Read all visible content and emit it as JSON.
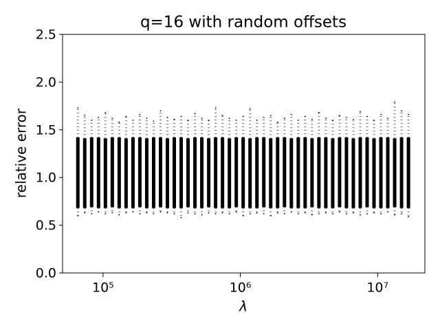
{
  "chart_data": {
    "type": "strip",
    "title": "q=16 with random offsets",
    "xlabel": "λ",
    "ylabel": "relative error",
    "xscale": "log",
    "xlim": [
      50700,
      22100000
    ],
    "ylim": [
      0,
      2.5
    ],
    "xticks": [
      {
        "value": 100000,
        "label": "10⁵"
      },
      {
        "value": 1000000,
        "label": "10⁶"
      },
      {
        "value": 10000000,
        "label": "10⁷"
      }
    ],
    "yticks": [
      {
        "value": 0,
        "label": "0.0"
      },
      0.5,
      {
        "value": 1,
        "label": "1.0"
      },
      1.5,
      {
        "value": 2,
        "label": "2.0"
      },
      2.5
    ],
    "color": "#000000",
    "x": [
      65536,
      73562,
      82570,
      92682,
      104032,
      116772,
      131072,
      147123,
      165140,
      185364,
      208064,
      233544,
      262144,
      294247,
      330281,
      370728,
      416128,
      467088,
      524288,
      588494,
      660561,
      741455,
      832255,
      934176,
      1048576,
      1176989,
      1321122,
      1482910,
      1664510,
      1868352,
      2097152,
      2353978,
      2642245,
      2965821,
      3329021,
      3736704,
      4194304,
      4707956,
      5284490,
      5931642,
      6658042,
      7473408,
      8388608,
      9415913,
      10568980,
      11863283,
      13316085,
      14946816,
      16777216
    ],
    "band_low": [
      0.68,
      0.68,
      0.69,
      0.68,
      0.68,
      0.69,
      0.68,
      0.68,
      0.68,
      0.69,
      0.68,
      0.68,
      0.69,
      0.68,
      0.68,
      0.68,
      0.69,
      0.68,
      0.68,
      0.69,
      0.68,
      0.68,
      0.68,
      0.69,
      0.68,
      0.68,
      0.68,
      0.69,
      0.68,
      0.68,
      0.69,
      0.68,
      0.68,
      0.68,
      0.69,
      0.68,
      0.68,
      0.68,
      0.69,
      0.68,
      0.68,
      0.68,
      0.69,
      0.68,
      0.68,
      0.68,
      0.69,
      0.68,
      0.68
    ],
    "band_high": [
      1.42,
      1.41,
      1.42,
      1.42,
      1.41,
      1.42,
      1.42,
      1.41,
      1.42,
      1.42,
      1.41,
      1.42,
      1.42,
      1.41,
      1.42,
      1.42,
      1.41,
      1.42,
      1.42,
      1.41,
      1.42,
      1.42,
      1.41,
      1.42,
      1.42,
      1.41,
      1.42,
      1.42,
      1.41,
      1.42,
      1.42,
      1.41,
      1.42,
      1.42,
      1.41,
      1.42,
      1.42,
      1.41,
      1.42,
      1.42,
      1.41,
      1.42,
      1.42,
      1.41,
      1.42,
      1.42,
      1.41,
      1.42,
      1.42
    ],
    "max": [
      1.73,
      1.65,
      1.6,
      1.63,
      1.68,
      1.62,
      1.58,
      1.64,
      1.6,
      1.66,
      1.62,
      1.59,
      1.7,
      1.63,
      1.61,
      1.64,
      1.6,
      1.67,
      1.62,
      1.6,
      1.73,
      1.65,
      1.62,
      1.6,
      1.64,
      1.72,
      1.6,
      1.63,
      1.65,
      1.58,
      1.62,
      1.66,
      1.6,
      1.64,
      1.61,
      1.68,
      1.62,
      1.6,
      1.65,
      1.63,
      1.61,
      1.69,
      1.64,
      1.6,
      1.66,
      1.62,
      1.79,
      1.7,
      1.66
    ],
    "min": [
      0.6,
      0.63,
      0.62,
      0.64,
      0.62,
      0.63,
      0.61,
      0.63,
      0.64,
      0.62,
      0.63,
      0.62,
      0.64,
      0.63,
      0.62,
      0.58,
      0.63,
      0.62,
      0.61,
      0.63,
      0.62,
      0.63,
      0.62,
      0.64,
      0.6,
      0.62,
      0.63,
      0.62,
      0.6,
      0.63,
      0.62,
      0.64,
      0.62,
      0.63,
      0.61,
      0.62,
      0.63,
      0.62,
      0.64,
      0.62,
      0.63,
      0.61,
      0.62,
      0.63,
      0.62,
      0.64,
      0.61,
      0.62,
      0.59
    ]
  }
}
